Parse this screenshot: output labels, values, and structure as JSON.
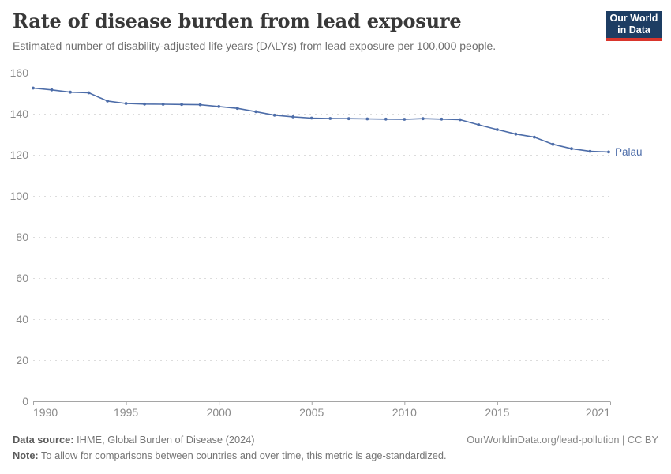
{
  "header": {
    "title": "Rate of disease burden from lead exposure",
    "subtitle": "Estimated number of disability-adjusted life years (DALYs) from lead exposure per 100,000 people.",
    "logo": {
      "line1": "Our World",
      "line2": "in Data",
      "bg_color": "#1d3d63",
      "accent_color": "#d9352c"
    }
  },
  "chart_data": {
    "type": "line",
    "title": "Rate of disease burden from lead exposure",
    "xlabel": "",
    "ylabel": "",
    "x": [
      1990,
      1991,
      1992,
      1993,
      1994,
      1995,
      1996,
      1997,
      1998,
      1999,
      2000,
      2001,
      2002,
      2003,
      2004,
      2005,
      2006,
      2007,
      2008,
      2009,
      2010,
      2011,
      2012,
      2013,
      2014,
      2015,
      2016,
      2017,
      2018,
      2019,
      2020,
      2021
    ],
    "series": [
      {
        "name": "Palau",
        "color": "#4d6da9",
        "values": [
          152.5,
          151.6,
          150.5,
          150.2,
          146.2,
          145.0,
          144.7,
          144.6,
          144.5,
          144.4,
          143.5,
          142.6,
          141.0,
          139.3,
          138.5,
          137.9,
          137.7,
          137.6,
          137.5,
          137.4,
          137.3,
          137.6,
          137.4,
          137.1,
          134.6,
          132.3,
          130.1,
          128.6,
          125.1,
          123.0,
          121.7,
          121.4
        ]
      }
    ],
    "xticks": [
      1990,
      1995,
      2000,
      2005,
      2010,
      2015,
      2021
    ],
    "yticks": [
      0,
      20,
      40,
      60,
      80,
      100,
      120,
      140,
      160
    ],
    "xlim": [
      1990,
      2021
    ],
    "ylim": [
      0,
      160
    ],
    "grid": "horizontal-dashed",
    "legend_position": "end-of-line",
    "marker": "dot",
    "colors": {
      "grid": "#dcdcdc",
      "axis": "#a5a5a5",
      "tick_label": "#8a8a8a"
    }
  },
  "footer": {
    "source_label": "Data source:",
    "source_text": " IHME, Global Burden of Disease (2024)",
    "rights": "OurWorldinData.org/lead-pollution | CC BY",
    "note_label": "Note:",
    "note_text": " To allow for comparisons between countries and over time, this metric is age-standardized."
  }
}
